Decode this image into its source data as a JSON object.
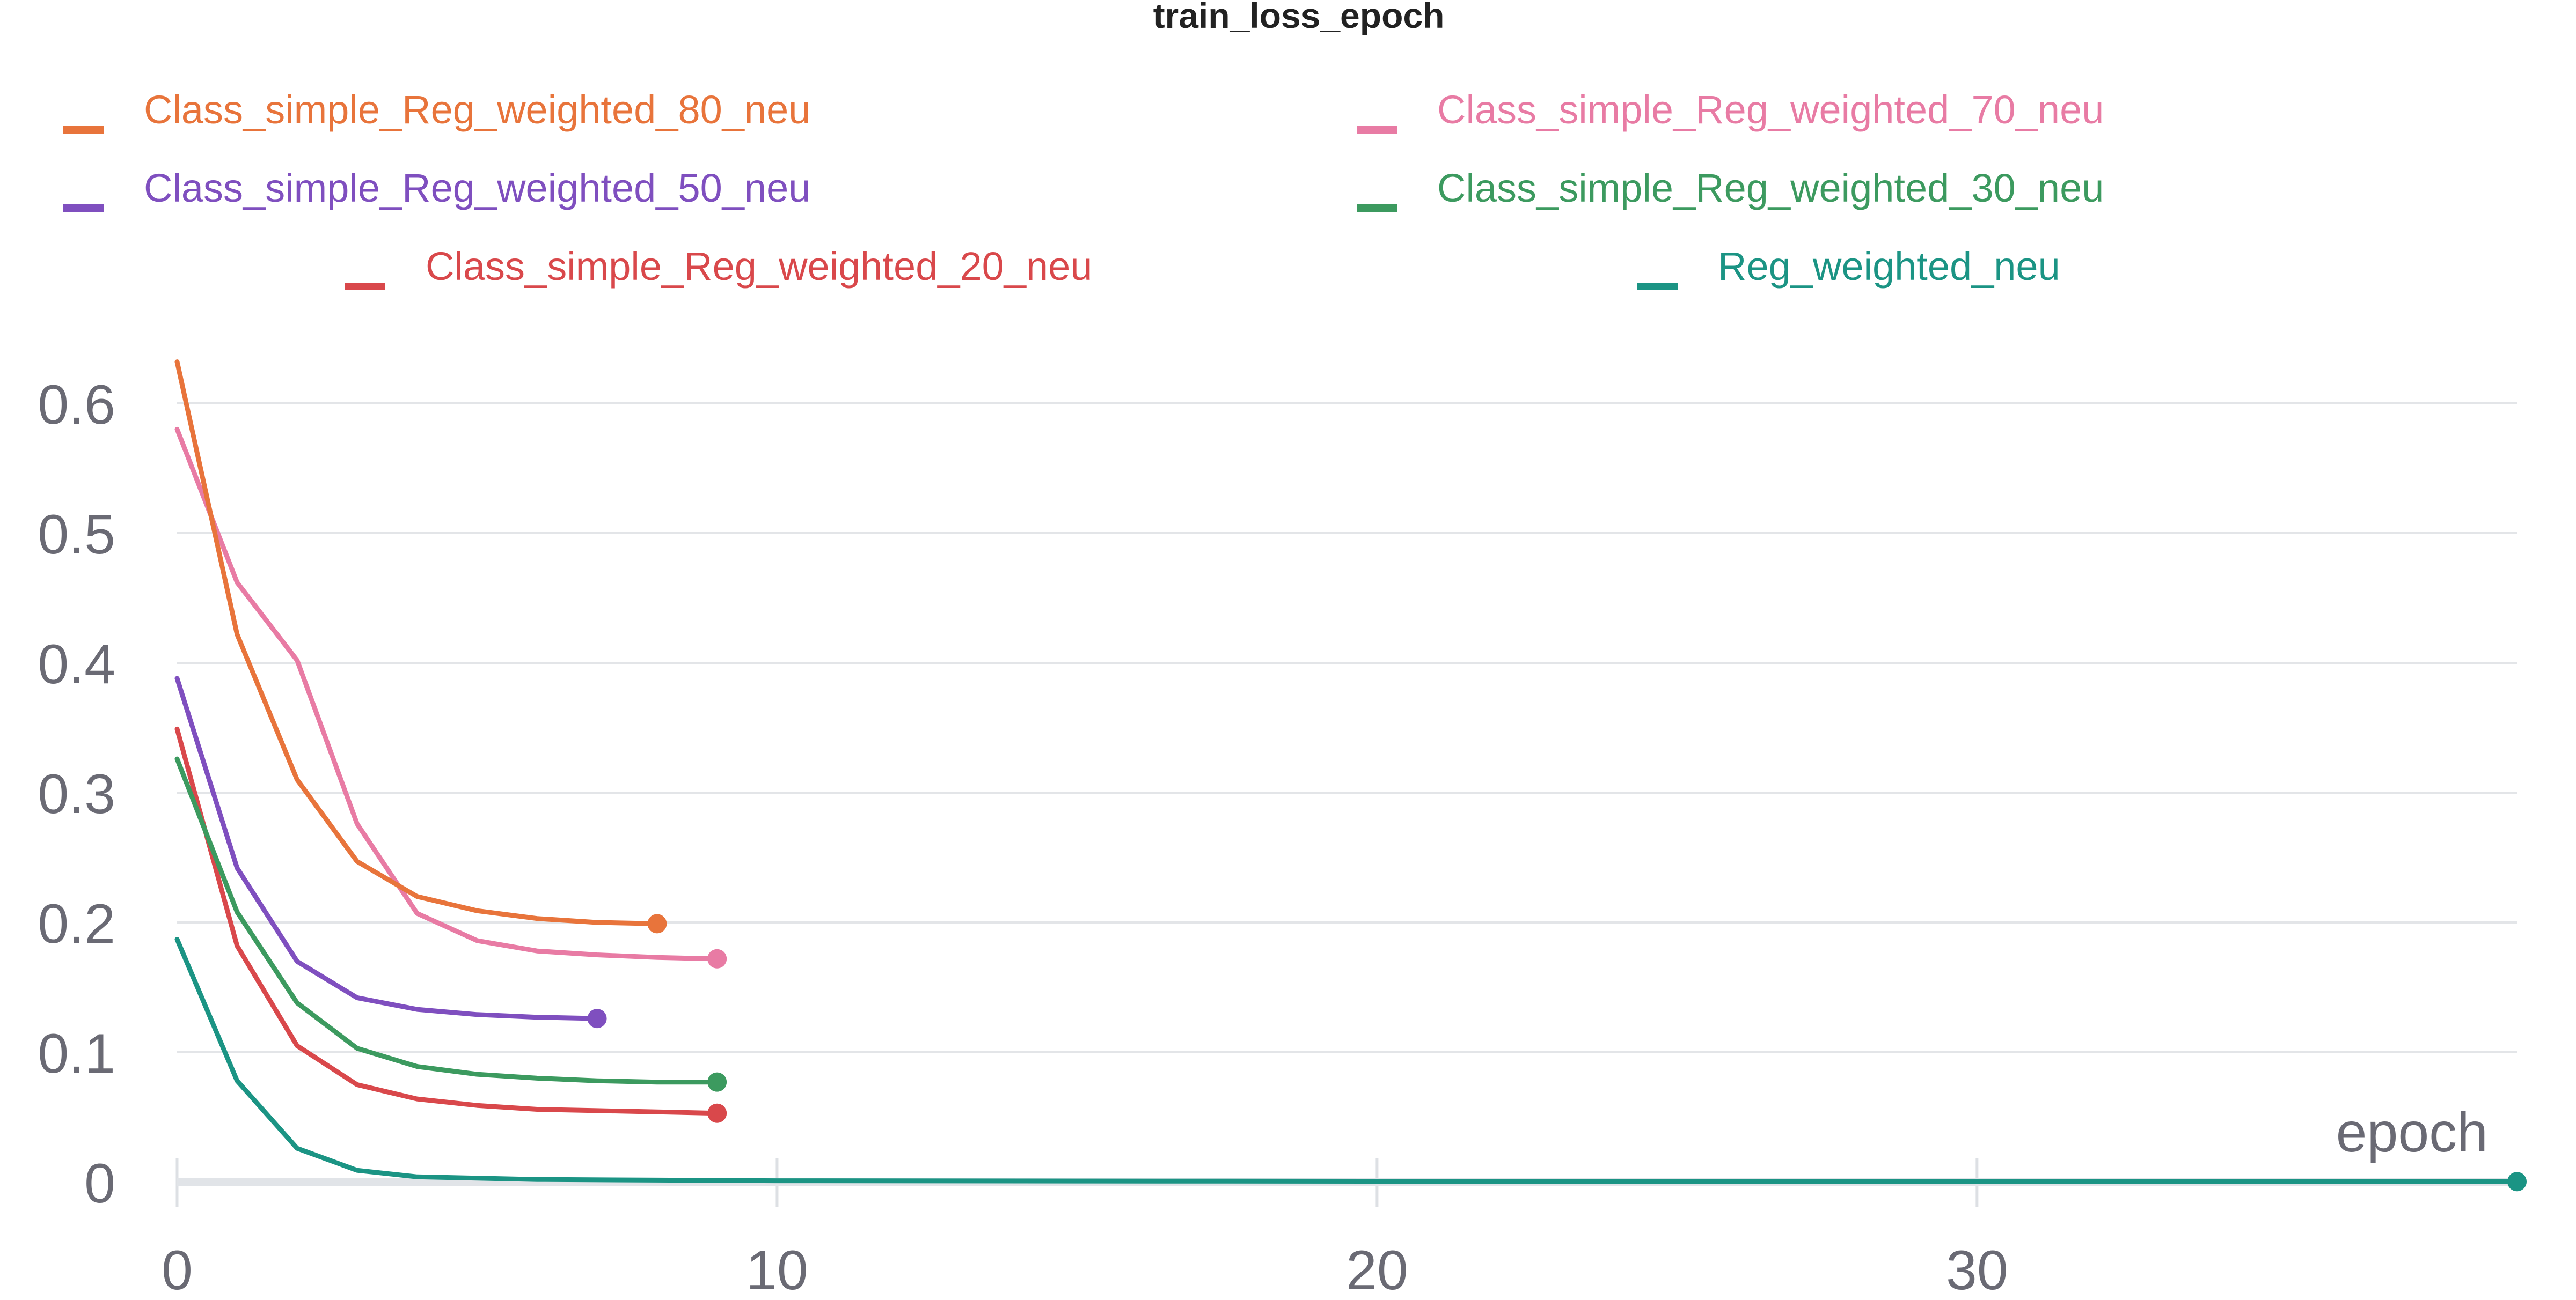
{
  "chart_data": {
    "type": "line",
    "title": "train_loss_epoch",
    "xlabel": "epoch",
    "ylabel": "",
    "xlim": [
      0,
      39
    ],
    "ylim": [
      0,
      0.65
    ],
    "x_ticks": [
      0,
      10,
      20,
      30
    ],
    "y_ticks": [
      0,
      0.1,
      0.2,
      0.3,
      0.4,
      0.5,
      0.6
    ],
    "x_tick_labels": [
      "0",
      "10",
      "20",
      "30"
    ],
    "y_tick_labels": [
      "0",
      "0.1",
      "0.2",
      "0.3",
      "0.4",
      "0.5",
      "0.6"
    ],
    "grid": true,
    "legend_position": "top",
    "series": [
      {
        "name": "Class_simple_Reg_weighted_80_neu",
        "color": "#e8743b",
        "x": [
          0,
          1,
          2,
          3,
          4,
          5,
          6,
          7,
          8
        ],
        "y": [
          0.632,
          0.422,
          0.31,
          0.247,
          0.22,
          0.209,
          0.203,
          0.2,
          0.199
        ]
      },
      {
        "name": "Class_simple_Reg_weighted_70_neu",
        "color": "#e87ba4",
        "x": [
          0,
          1,
          2,
          3,
          4,
          5,
          6,
          7,
          8,
          9
        ],
        "y": [
          0.58,
          0.462,
          0.402,
          0.276,
          0.207,
          0.186,
          0.178,
          0.175,
          0.173,
          0.172
        ]
      },
      {
        "name": "Class_simple_Reg_weighted_50_neu",
        "color": "#7f4fbf",
        "x": [
          0,
          1,
          2,
          3,
          4,
          5,
          6,
          7
        ],
        "y": [
          0.388,
          0.242,
          0.17,
          0.142,
          0.133,
          0.129,
          0.127,
          0.126
        ]
      },
      {
        "name": "Class_simple_Reg_weighted_30_neu",
        "color": "#3c9a5f",
        "x": [
          0,
          1,
          2,
          3,
          4,
          5,
          6,
          7,
          8,
          9
        ],
        "y": [
          0.326,
          0.208,
          0.138,
          0.103,
          0.089,
          0.083,
          0.08,
          0.078,
          0.077,
          0.077
        ]
      },
      {
        "name": "Class_simple_Reg_weighted_20_neu",
        "color": "#d9484b",
        "x": [
          0,
          1,
          2,
          3,
          4,
          5,
          6,
          7,
          8,
          9
        ],
        "y": [
          0.349,
          0.182,
          0.105,
          0.075,
          0.064,
          0.059,
          0.056,
          0.055,
          0.054,
          0.053
        ]
      },
      {
        "name": "Reg_weighted_neu",
        "color": "#1b9484",
        "x": [
          0,
          1,
          2,
          3,
          4,
          5,
          6,
          8,
          10,
          15,
          20,
          25,
          30,
          35,
          39
        ],
        "y": [
          0.187,
          0.078,
          0.026,
          0.009,
          0.004,
          0.003,
          0.002,
          0.0015,
          0.001,
          0.0008,
          0.0006,
          0.0005,
          0.0004,
          0.0003,
          0.0003
        ]
      }
    ]
  }
}
